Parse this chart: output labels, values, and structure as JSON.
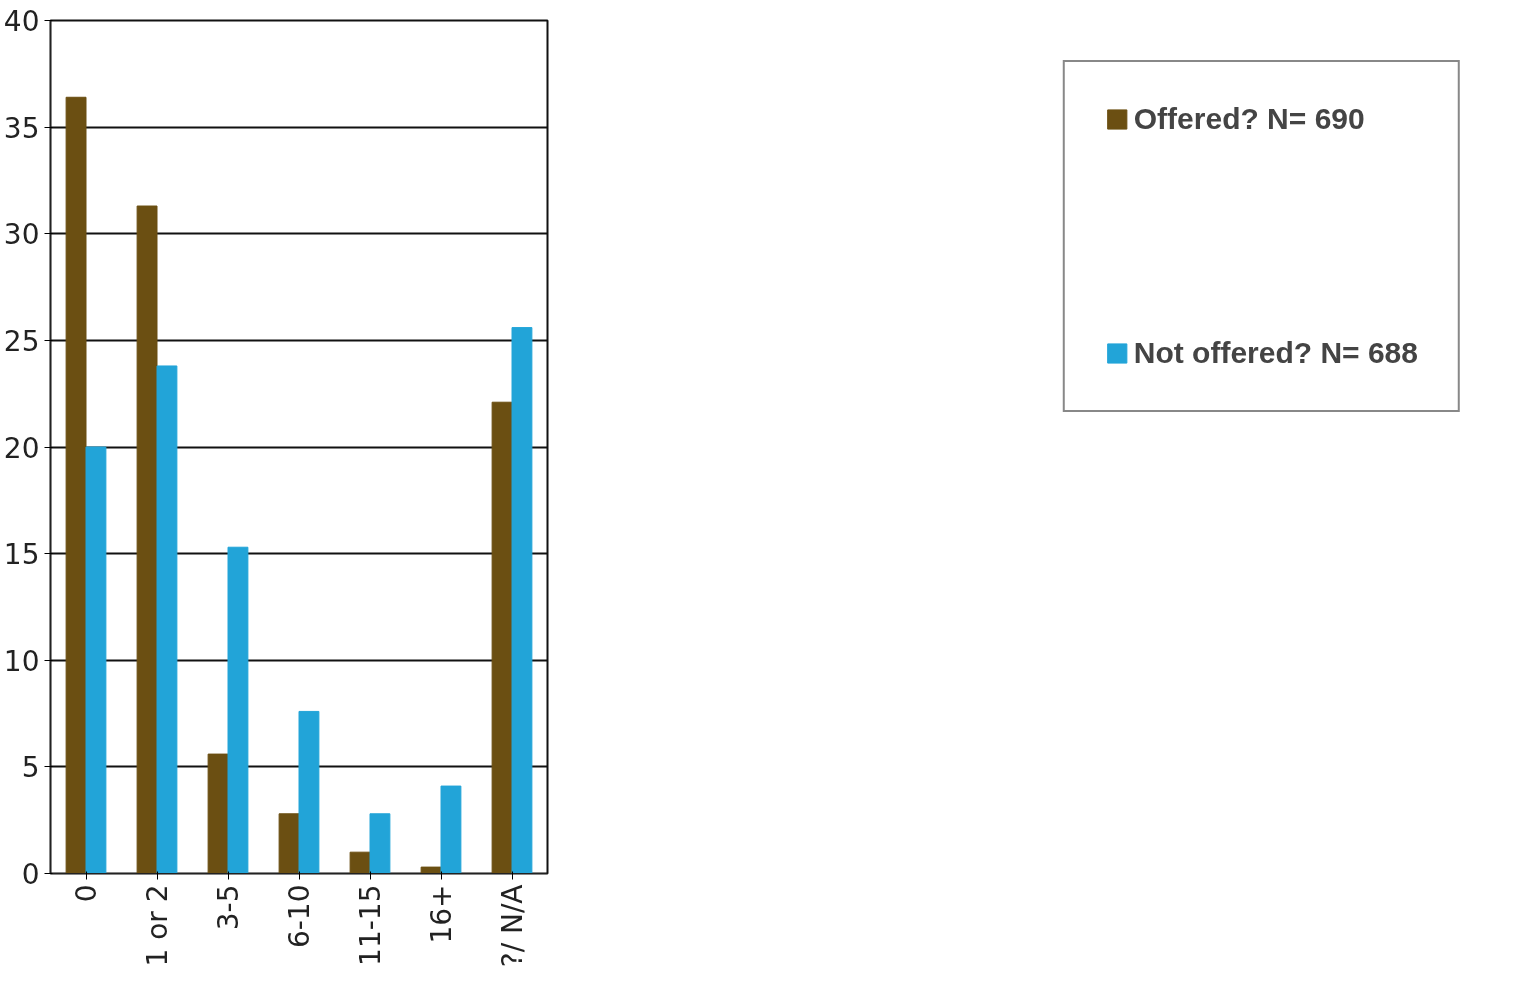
{
  "chart_data": {
    "type": "bar",
    "categories": [
      "0",
      "1 or 2",
      "3-5",
      "6-10",
      "11-15",
      "16+",
      "?/ N/A"
    ],
    "series": [
      {
        "name": "Offered? N= 690",
        "color": "#6b4f12",
        "values": [
          36.4,
          31.3,
          5.6,
          2.8,
          1.0,
          0.3,
          22.1
        ]
      },
      {
        "name": "Not offered? N= 688",
        "color": "#22a4d8",
        "values": [
          20.0,
          23.8,
          15.3,
          7.6,
          2.8,
          4.1,
          25.6
        ]
      }
    ],
    "ylim": [
      0,
      40
    ],
    "yticks": [
      0,
      5,
      10,
      15,
      20,
      25,
      30,
      35,
      40
    ],
    "grid": "y",
    "legend": "right"
  }
}
